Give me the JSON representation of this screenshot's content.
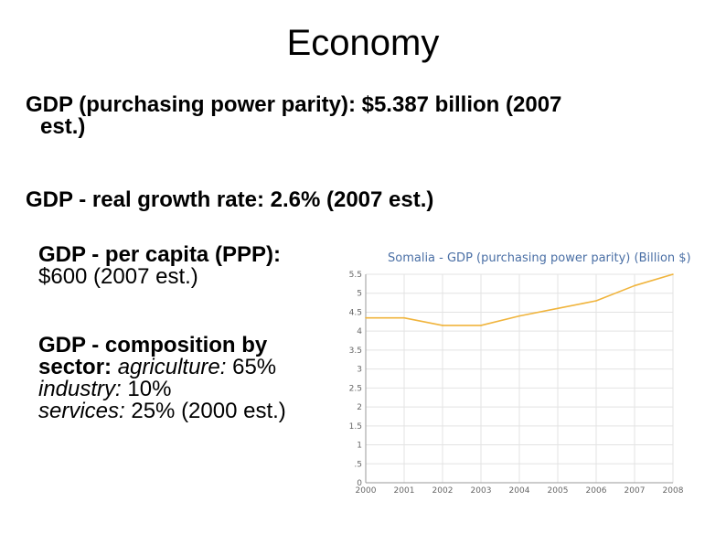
{
  "slide": {
    "title": "Economy",
    "gdp_ppp": {
      "label": "GDP (purchasing power parity):",
      "value_line1": "$5.387 billion (2007",
      "value_line2": "est.)"
    },
    "growth": {
      "label": "GDP - real growth rate:",
      "value": "2.6% (2007 est.)"
    },
    "per_capita": {
      "label": "GDP - per capita (PPP):",
      "value": "$600 (2007 est.)"
    },
    "composition": {
      "label_line1": "GDP - composition by",
      "label_line2": "sector:",
      "agriculture_label": "agriculture:",
      "agriculture_value": "65%",
      "industry_label": "industry:",
      "industry_value": "10%",
      "services_label": "services:",
      "services_value": "25% (2000 est.)"
    }
  },
  "chart_data": {
    "type": "line",
    "title": "Somalia - GDP (purchasing power parity) (Billion $)",
    "xlabel": "",
    "ylabel": "",
    "x": [
      "2000",
      "2001",
      "2002",
      "2003",
      "2004",
      "2005",
      "2006",
      "2007",
      "2008"
    ],
    "series": [
      {
        "values": [
          4.35,
          4.35,
          4.15,
          4.15,
          4.4,
          4.6,
          4.8,
          5.2,
          5.5
        ],
        "color": "#f0b43c"
      }
    ],
    "yticks": [
      "0",
      ".5",
      "1",
      "1.5",
      "2",
      "2.5",
      "3",
      "3.5",
      "4",
      "4.5",
      "5",
      "5.5"
    ],
    "ylim": [
      0,
      5.5
    ],
    "grid": true,
    "legend": "none",
    "colors": {
      "title": "#4a6fa5",
      "line": "#f0b43c",
      "grid": "#e3e3e3"
    }
  }
}
